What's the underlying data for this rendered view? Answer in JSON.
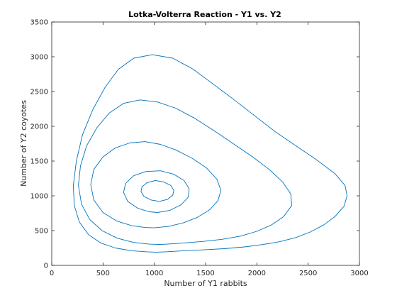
{
  "chart_data": {
    "type": "line",
    "title": "Lotka-Volterra Reaction - Y1 vs. Y2",
    "xlabel": "Number of Y1 rabbits",
    "ylabel": "Number of Y2 coyotes",
    "xlim": [
      0,
      3000
    ],
    "ylim": [
      0,
      3500
    ],
    "xticks": [
      0,
      500,
      1000,
      1500,
      2000,
      2500,
      3000
    ],
    "yticks": [
      0,
      500,
      1000,
      1500,
      2000,
      2500,
      3000,
      3500
    ],
    "grid": false,
    "legend": "none",
    "series_color": "#0072BD",
    "series": [
      {
        "x": [
          1020,
          1110,
          1230,
          1350,
          1500,
          1680,
          1880,
          2060,
          2220,
          2380,
          2520,
          2650,
          2760,
          2850,
          2880,
          2860,
          2760,
          2580,
          2380,
          2180,
          1980,
          1780,
          1580,
          1380,
          1180,
          980,
          800,
          650,
          520,
          400,
          300,
          240,
          210,
          220,
          270,
          360,
          480,
          620,
          780,
          930,
          1020
        ],
        "y": [
          190,
          195,
          205,
          215,
          225,
          240,
          265,
          300,
          340,
          400,
          480,
          580,
          700,
          850,
          1000,
          1150,
          1320,
          1520,
          1720,
          1920,
          2150,
          2380,
          2600,
          2820,
          2980,
          3030,
          2980,
          2820,
          2560,
          2240,
          1880,
          1500,
          1150,
          860,
          620,
          440,
          320,
          250,
          210,
          195,
          190
        ]
      },
      {
        "x": [
          1060,
          1180,
          1320,
          1480,
          1660,
          1840,
          2000,
          2140,
          2260,
          2340,
          2330,
          2250,
          2120,
          1960,
          1780,
          1590,
          1400,
          1210,
          1030,
          860,
          700,
          560,
          440,
          340,
          280,
          260,
          290,
          370,
          490,
          640,
          800,
          950,
          1060
        ],
        "y": [
          300,
          310,
          325,
          345,
          375,
          420,
          490,
          580,
          700,
          860,
          1030,
          1200,
          1380,
          1560,
          1740,
          1930,
          2110,
          2260,
          2350,
          2380,
          2330,
          2190,
          1980,
          1720,
          1430,
          1150,
          880,
          660,
          500,
          390,
          330,
          305,
          300
        ]
      },
      {
        "x": [
          1000,
          1140,
          1280,
          1420,
          1540,
          1620,
          1650,
          1610,
          1510,
          1370,
          1210,
          1060,
          910,
          760,
          620,
          500,
          410,
          380,
          410,
          500,
          630,
          780,
          910,
          1000
        ],
        "y": [
          540,
          560,
          610,
          690,
          800,
          930,
          1080,
          1240,
          1400,
          1540,
          1660,
          1740,
          1780,
          1760,
          1690,
          1560,
          1380,
          1160,
          940,
          760,
          640,
          570,
          545,
          540
        ]
      },
      {
        "x": [
          1030,
          1150,
          1260,
          1330,
          1340,
          1290,
          1190,
          1060,
          920,
          800,
          720,
          700,
          740,
          840,
          950,
          1030
        ],
        "y": [
          760,
          790,
          870,
          980,
          1100,
          1220,
          1310,
          1360,
          1350,
          1290,
          1180,
          1050,
          920,
          820,
          770,
          760
        ]
      },
      {
        "x": [
          1050,
          1130,
          1180,
          1190,
          1160,
          1090,
          1010,
          930,
          880,
          870,
          900,
          970,
          1050
        ],
        "y": [
          920,
          950,
          1010,
          1080,
          1150,
          1200,
          1220,
          1190,
          1130,
          1060,
          990,
          940,
          920
        ]
      }
    ]
  }
}
